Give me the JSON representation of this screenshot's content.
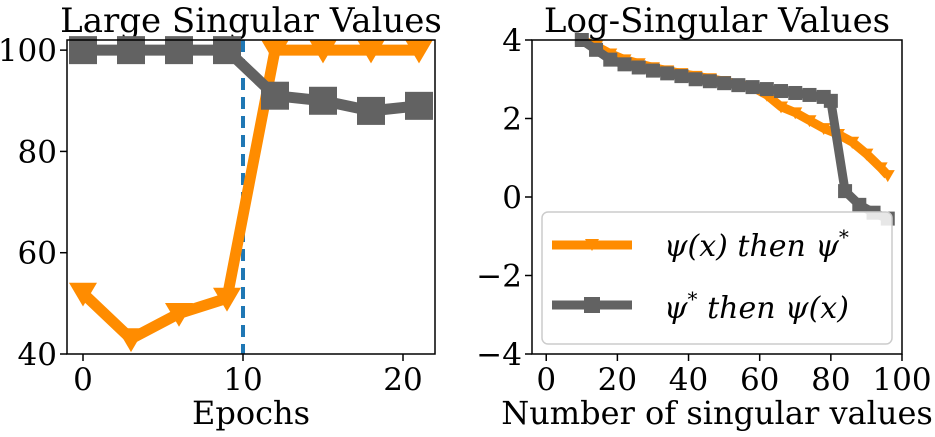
{
  "chart_data": [
    {
      "type": "line",
      "title": "Large Singular Values",
      "xlabel": "Epochs",
      "ylabel": "",
      "xlim": [
        -1,
        22
      ],
      "ylim": [
        40,
        102
      ],
      "xticks": [
        0,
        10,
        20
      ],
      "yticks": [
        40,
        60,
        80,
        100
      ],
      "grid": false,
      "vline": {
        "x": 10,
        "style": "dashed",
        "color": "#1f77b4"
      },
      "series": [
        {
          "name": "ψ(x) then ψ*",
          "color": "#ff8c00",
          "marker": "triangle-down",
          "x": [
            0,
            3,
            6,
            9,
            12,
            15,
            18,
            21
          ],
          "y": [
            52,
            43,
            48,
            51,
            100,
            100,
            100,
            100
          ]
        },
        {
          "name": "ψ* then ψ(x)",
          "color": "#626262",
          "marker": "square",
          "x": [
            0,
            3,
            6,
            9,
            12,
            15,
            18,
            21
          ],
          "y": [
            100,
            100,
            100,
            100,
            91,
            90,
            88,
            89
          ]
        }
      ]
    },
    {
      "type": "line",
      "title": "Log-Singular Values",
      "xlabel": "Number of singular values",
      "ylabel": "",
      "xlim": [
        -4,
        100
      ],
      "ylim": [
        -4,
        4
      ],
      "xticks": [
        0,
        20,
        40,
        60,
        80,
        100
      ],
      "yticks": [
        -4,
        -2,
        0,
        2,
        4
      ],
      "grid": false,
      "legend_position": "lower-left",
      "legend": [
        {
          "label_main": "ψ(x) then ψ",
          "label_sup": "*",
          "series": 0
        },
        {
          "label_main": "ψ",
          "label_sup": "*",
          "label_rest": " then ψ(x)",
          "series": 1
        }
      ],
      "series": [
        {
          "name": "ψ(x) then ψ*",
          "color": "#ff8c00",
          "marker": "triangle-down",
          "x": [
            10,
            14,
            18,
            22,
            26,
            30,
            34,
            38,
            42,
            46,
            50,
            54,
            58,
            62,
            66,
            70,
            74,
            78,
            82,
            86,
            90,
            94,
            96
          ],
          "y": [
            4.0,
            3.85,
            3.65,
            3.5,
            3.4,
            3.3,
            3.22,
            3.15,
            3.08,
            3.02,
            2.95,
            2.88,
            2.8,
            2.6,
            2.3,
            2.15,
            1.95,
            1.75,
            1.6,
            1.4,
            1.1,
            0.75,
            0.55
          ]
        },
        {
          "name": "ψ* then ψ(x)",
          "color": "#626262",
          "marker": "square",
          "x": [
            10,
            14,
            18,
            22,
            26,
            30,
            34,
            38,
            42,
            46,
            50,
            54,
            58,
            62,
            66,
            70,
            74,
            78,
            80,
            84,
            88,
            92,
            96
          ],
          "y": [
            4.0,
            3.75,
            3.5,
            3.38,
            3.3,
            3.22,
            3.15,
            3.08,
            3.0,
            2.95,
            2.9,
            2.85,
            2.8,
            2.75,
            2.7,
            2.65,
            2.6,
            2.55,
            2.45,
            0.15,
            -0.2,
            -0.4,
            -0.55
          ]
        }
      ]
    }
  ]
}
